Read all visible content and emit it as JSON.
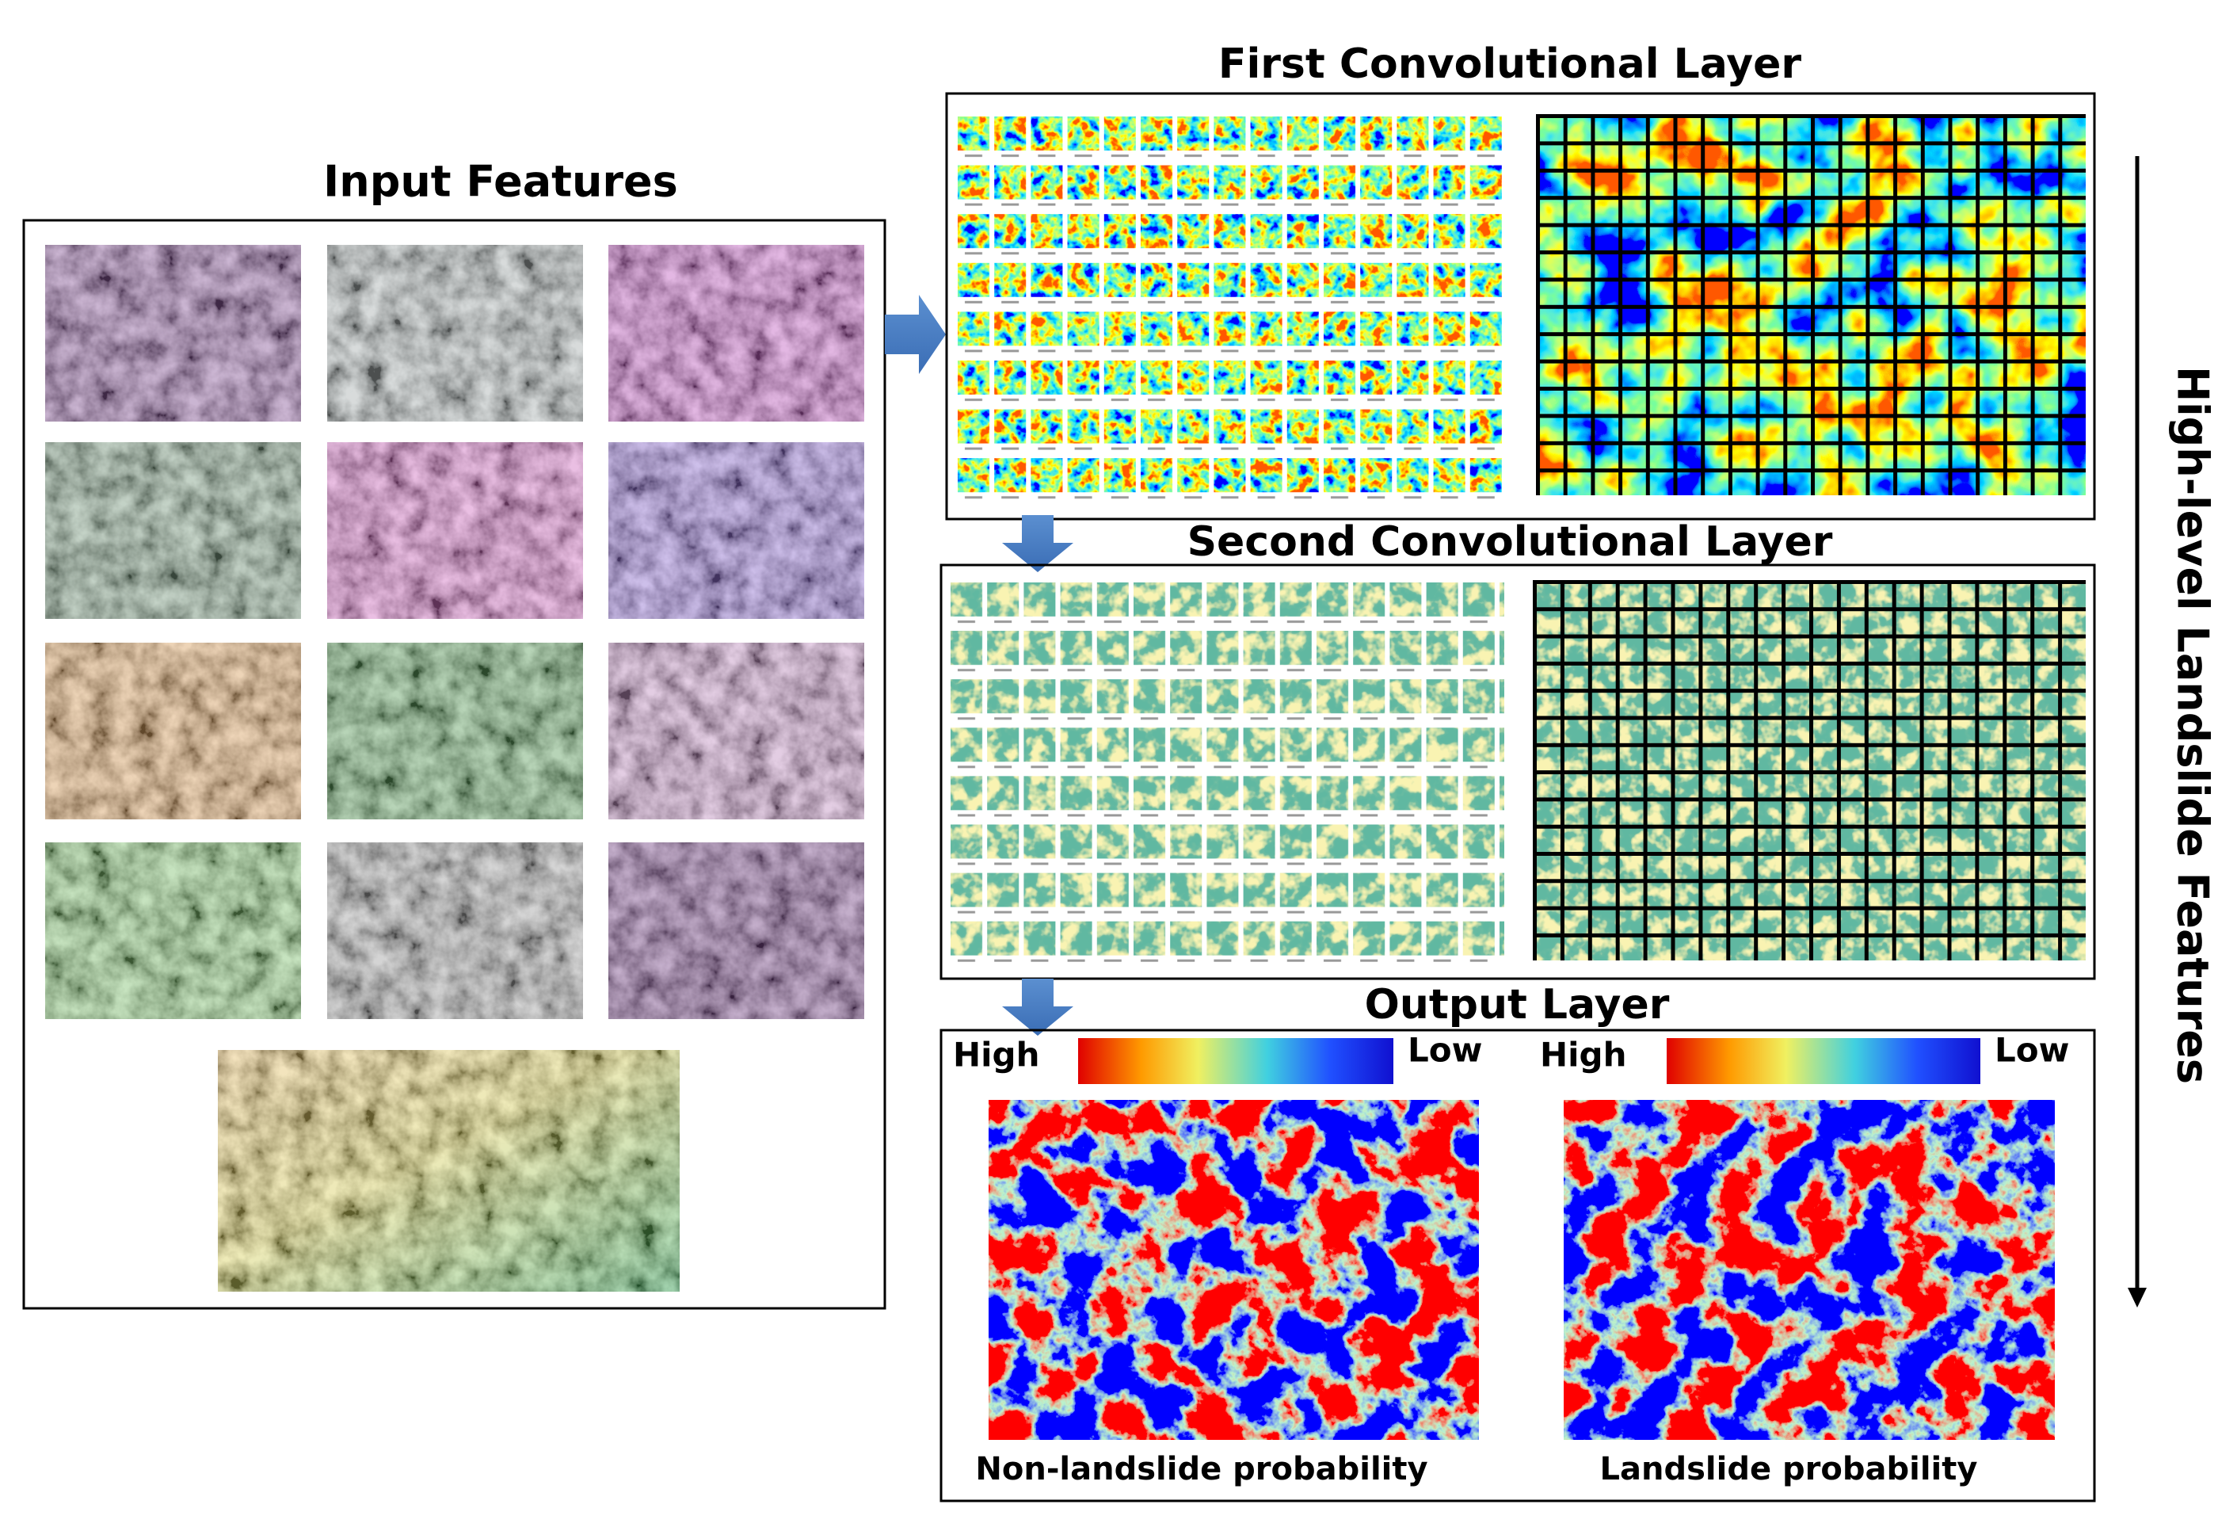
{
  "input": {
    "title": "Input Features"
  },
  "first_conv": {
    "title": "First Convolutional Layer"
  },
  "second_conv": {
    "title": "Second Convolutional Layer"
  },
  "output": {
    "title": "Output Layer",
    "legends": [
      {
        "high": "High",
        "low": "Low"
      },
      {
        "high": "High",
        "low": "Low"
      }
    ],
    "maps": [
      {
        "caption": "Non-landslide probability"
      },
      {
        "caption": "Landslide probability"
      }
    ]
  },
  "side_label": "High-level Landslide Features"
}
